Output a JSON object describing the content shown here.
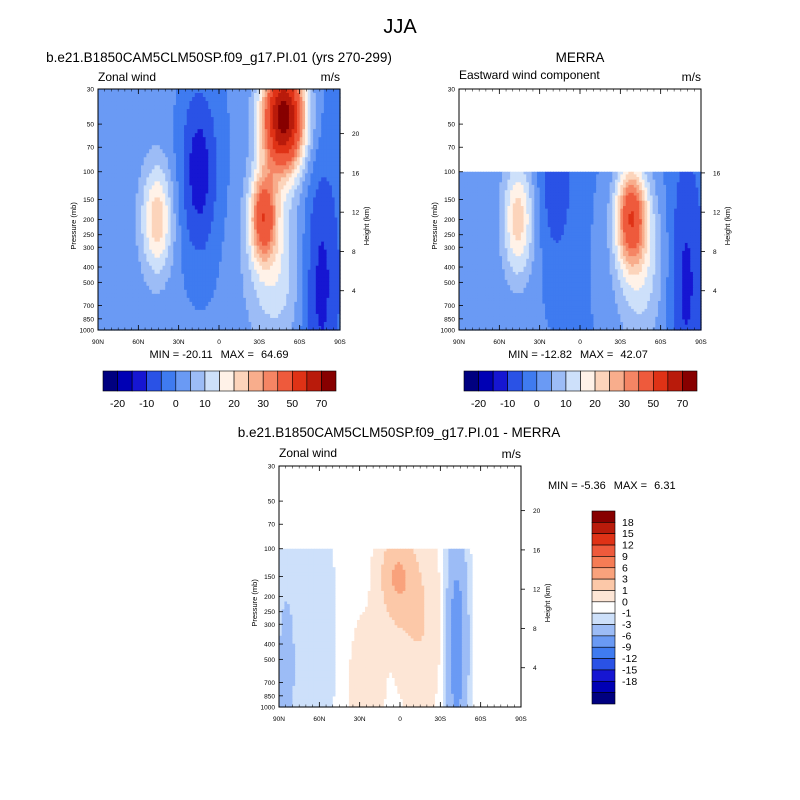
{
  "page_title": "JJA",
  "colors": {
    "bg": "#ffffff",
    "frame": "#000000",
    "topbar_levels": [
      "#000080",
      "#0000b4",
      "#1616d2",
      "#2a52e6",
      "#3f7bf0",
      "#6a9af4",
      "#9cbcf6",
      "#cde0fa",
      "#fff2e8",
      "#fcd4bb",
      "#f8ad8c",
      "#f58564",
      "#ee5a3c",
      "#df3216",
      "#b91b0b",
      "#870000"
    ],
    "diff_levels": [
      "#000080",
      "#0000b4",
      "#1616d2",
      "#2a52e6",
      "#3f7bf0",
      "#6a9af4",
      "#9cbcf6",
      "#cde0fa",
      "#ffffff",
      "#fde6d6",
      "#fcc8a8",
      "#f9a27c",
      "#f57c55",
      "#ee5a3c",
      "#df3216",
      "#b91b0b",
      "#870000"
    ]
  },
  "chart_data": [
    {
      "type": "heatmap",
      "id": "model",
      "title": "b.e21.B1850CAM5CLM50SP.f09_g17.PI.01 (yrs 270-299)",
      "left_label": "Zonal wind",
      "right_label": "m/s",
      "xlabel": "",
      "ylabel": "Pressure (mb)",
      "ylabel_right": "Height (km)",
      "x_ticks": [
        "90N",
        "60N",
        "30N",
        "0",
        "30S",
        "60S",
        "90S"
      ],
      "y_ticks": [
        "30",
        "50",
        "70",
        "100",
        "150",
        "200",
        "250",
        "300",
        "400",
        "500",
        "700",
        "850",
        "1000"
      ],
      "height_ticks": [
        "4",
        "8",
        "12",
        "16",
        "20"
      ],
      "stats": {
        "min_label": "MIN = ",
        "min": "-20.11",
        "max_label": "MAX = ",
        "max": "64.69"
      },
      "data_range_mb": [
        30,
        1000
      ],
      "features": [
        {
          "lat": 45,
          "p": 200,
          "u": 15
        },
        {
          "lat": 15,
          "p": 80,
          "u": -20
        },
        {
          "lat": -42,
          "p": 40,
          "u": 64.69
        },
        {
          "lat": -32,
          "p": 180,
          "u": 40
        }
      ]
    },
    {
      "type": "heatmap",
      "id": "obs",
      "title": "MERRA",
      "left_label": "Eastward wind component",
      "right_label": "m/s",
      "xlabel": "",
      "ylabel": "Pressure (mb)",
      "ylabel_right": "Height (km)",
      "x_ticks": [
        "90N",
        "60N",
        "30N",
        "0",
        "30S",
        "60S",
        "90S"
      ],
      "y_ticks": [
        "30",
        "50",
        "70",
        "100",
        "150",
        "200",
        "250",
        "300",
        "400",
        "500",
        "700",
        "850",
        "1000"
      ],
      "height_ticks": [
        "4",
        "8",
        "12",
        "16"
      ],
      "stats": {
        "min_label": "MIN = ",
        "min": "-12.82",
        "max_label": "MAX = ",
        "max": "42.07"
      },
      "data_range_mb": [
        100,
        1000
      ],
      "features": [
        {
          "lat": 45,
          "p": 200,
          "u": 12
        },
        {
          "lat": 20,
          "p": 120,
          "u": -12.82
        },
        {
          "lat": -32,
          "p": 180,
          "u": 42.07
        }
      ]
    },
    {
      "type": "heatmap",
      "id": "diff",
      "title": "b.e21.B1850CAM5CLM50SP.f09_g17.PI.01 - MERRA",
      "left_label": "Zonal wind",
      "right_label": "m/s",
      "xlabel": "",
      "ylabel": "Pressure (mb)",
      "ylabel_right": "Height (km)",
      "x_ticks": [
        "90N",
        "60N",
        "30N",
        "0",
        "30S",
        "60S",
        "90S"
      ],
      "y_ticks": [
        "30",
        "50",
        "70",
        "100",
        "150",
        "200",
        "250",
        "300",
        "400",
        "500",
        "700",
        "850",
        "1000"
      ],
      "height_ticks": [
        "4",
        "8",
        "12",
        "16",
        "20"
      ],
      "stats": {
        "min_label": "MIN = ",
        "min": "-5.36",
        "max_label": "MAX = ",
        "max": "6.31"
      },
      "data_range_mb": [
        100,
        1000
      ],
      "features": [
        {
          "lat": 0,
          "p": 150,
          "u": 6.31
        },
        {
          "lat": -40,
          "p": 400,
          "u": -5.36
        }
      ]
    }
  ],
  "colorbars": {
    "top_labels": [
      "-20",
      "-10",
      "0",
      "10",
      "20",
      "30",
      "50",
      "70"
    ],
    "diff_labels": [
      "18",
      "15",
      "12",
      "9",
      "6",
      "3",
      "1",
      "0",
      "-1",
      "-3",
      "-6",
      "-9",
      "-12",
      "-15",
      "-18"
    ]
  }
}
